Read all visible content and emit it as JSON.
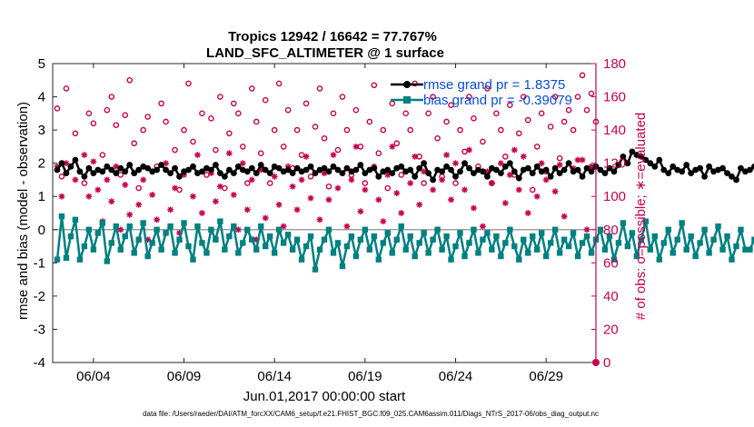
{
  "chart_data": {
    "type": "line",
    "title": "Tropics 12942 / 16642 = 77.767%",
    "subtitle": "LAND_SFC_ALTIMETER @ 1 surface",
    "xlabel": "Jun.01,2017 00:00:00 start",
    "ylabel_left": "rmse and bias (model - observation)",
    "ylabel_right": "# of obs: o=possible; ∗=evaluated",
    "footnote": "data file: /Users/raeder/DAI/ATM_forcXX/CAM6_setup/f.e21.FHIST_BGC.f09_025.CAM6assim.011/Diags_NTrS_2017-06/obs_diag_output.nc",
    "xlim": [
      0.75,
      30.75
    ],
    "ylim_left": [
      -4,
      5
    ],
    "ylim_right": [
      0,
      180
    ],
    "x_ticks": [
      3,
      8,
      13,
      18,
      23,
      28
    ],
    "x_tick_labels": [
      "06/04",
      "06/09",
      "06/14",
      "06/19",
      "06/24",
      "06/29"
    ],
    "y_ticks_left": [
      "-4",
      "-3",
      "-2",
      "-1",
      "0",
      "1",
      "2",
      "3",
      "4",
      "5"
    ],
    "y_ticks_right": [
      "0",
      "20",
      "40",
      "60",
      "80",
      "100",
      "120",
      "140",
      "160",
      "180"
    ],
    "legend_location": "top-right",
    "colors": {
      "rmse": "#000000",
      "bias": "#008080",
      "obs": "#c8004e",
      "legend_text": "#0a4cd8",
      "zero_line": "#a0a0a0"
    },
    "series": [
      {
        "name": "rmse grand pr = 1.8375",
        "axis": "left",
        "start": 1.0,
        "step": 0.25,
        "values": [
          1.8,
          2.0,
          1.7,
          1.9,
          2.1,
          1.75,
          1.6,
          1.85,
          1.7,
          1.8,
          1.75,
          1.9,
          1.8,
          1.7,
          1.85,
          1.75,
          1.95,
          1.7,
          1.8,
          1.9,
          1.85,
          1.75,
          1.8,
          1.95,
          1.8,
          1.7,
          1.85,
          1.6,
          1.75,
          1.8,
          1.9,
          1.7,
          1.75,
          1.85,
          1.8,
          1.95,
          1.7,
          1.6,
          1.8,
          1.7,
          1.9,
          1.8,
          1.75,
          1.85,
          1.7,
          1.95,
          1.8,
          1.7,
          1.9,
          1.85,
          1.75,
          1.8,
          1.7,
          1.85,
          1.75,
          1.8,
          1.9,
          1.7,
          1.8,
          1.85,
          1.75,
          1.9,
          1.8,
          1.7,
          1.85,
          1.75,
          1.8,
          1.95,
          1.7,
          1.8,
          1.85,
          1.6,
          1.75,
          1.8,
          1.7,
          1.85,
          1.9,
          1.75,
          1.8,
          1.6,
          1.85,
          2.0,
          1.7,
          1.5,
          1.8,
          1.75,
          1.9,
          1.8,
          1.6,
          1.75,
          2.0,
          1.85,
          1.7,
          1.8,
          1.75,
          1.6,
          1.85,
          1.8,
          1.7,
          1.9,
          2.0,
          1.75,
          1.55,
          1.8,
          1.85,
          1.7,
          1.9,
          1.75,
          1.8,
          1.6,
          1.85,
          1.7,
          1.8,
          2.0,
          1.75,
          1.8,
          1.6,
          1.85,
          1.75,
          1.9,
          1.8,
          1.7,
          1.85,
          1.75,
          1.95,
          2.2,
          2.0,
          2.35,
          2.25,
          2.2,
          2.1,
          2.0,
          1.9,
          2.1,
          1.8,
          1.7,
          1.9,
          1.8,
          1.75,
          1.95,
          1.7,
          1.8,
          1.85,
          1.6,
          1.9,
          1.75,
          1.8,
          1.85,
          1.7,
          1.6,
          1.5,
          1.85,
          1.75,
          1.8,
          1.9,
          1.65,
          1.6,
          1.85,
          1.7,
          1.75
        ]
      },
      {
        "name": "bias grand pr = -0.39079",
        "axis": "left",
        "start": 1.0,
        "step": 0.25,
        "values": [
          -0.9,
          0.4,
          -0.85,
          -0.2,
          0.3,
          -0.9,
          -0.5,
          0.0,
          -0.6,
          -0.1,
          0.2,
          -0.95,
          -0.4,
          0.1,
          -0.6,
          -0.2,
          0.1,
          -0.7,
          -0.3,
          0.2,
          -0.8,
          -0.4,
          0.0,
          -0.6,
          -0.1,
          0.1,
          -0.7,
          -0.3,
          0.2,
          -0.5,
          -0.9,
          0.1,
          -0.4,
          -0.7,
          0.0,
          -0.3,
          0.25,
          -0.6,
          -0.2,
          0.1,
          -0.7,
          -0.4,
          0.0,
          -0.3,
          -0.6,
          0.1,
          -0.5,
          -0.2,
          -0.7,
          0.0,
          -0.4,
          -0.15,
          -0.6,
          -0.3,
          -0.9,
          -0.5,
          -0.2,
          -1.2,
          -0.6,
          -0.3,
          0.0,
          -0.7,
          -0.4,
          -1.1,
          -0.5,
          -0.2,
          -0.8,
          -0.3,
          0.0,
          -0.6,
          -0.2,
          -0.9,
          -0.4,
          -0.1,
          -0.7,
          -0.3,
          0.1,
          -0.6,
          -0.2,
          -0.8,
          -0.4,
          -0.1,
          -0.7,
          -0.3,
          0.0,
          -0.6,
          -0.2,
          -0.9,
          -0.5,
          -0.1,
          -0.8,
          -0.4,
          0.0,
          -0.7,
          -0.3,
          -0.1,
          -0.6,
          -0.2,
          -0.8,
          -0.4,
          0.0,
          -0.5,
          -0.9,
          -0.3,
          -0.7,
          -0.2,
          -0.6,
          -0.1,
          -0.8,
          -0.4,
          0.0,
          -0.7,
          -0.3,
          -0.5,
          -0.1,
          -0.8,
          -0.4,
          -0.2,
          -0.7,
          -0.3,
          0.0,
          -0.6,
          -0.2,
          -0.9,
          -0.4,
          0.2,
          -0.5,
          -0.1,
          -0.8,
          -0.3,
          0.25,
          -0.6,
          -0.2,
          -0.9,
          -0.4,
          0.0,
          -0.7,
          -0.3,
          0.2,
          -0.6,
          -0.2,
          -0.8,
          -0.4,
          0.0,
          -0.7,
          -0.3,
          0.1,
          -0.6,
          -0.2,
          -0.9,
          -0.5,
          0.0,
          -0.6,
          -0.6,
          -0.3,
          0.0
        ]
      }
    ],
    "obs_possible": [
      [
        1.0,
        153
      ],
      [
        1.25,
        112
      ],
      [
        1.5,
        165
      ],
      [
        2.0,
        138
      ],
      [
        2.5,
        108
      ],
      [
        2.75,
        150
      ],
      [
        3.0,
        144
      ],
      [
        3.5,
        125
      ],
      [
        3.75,
        152
      ],
      [
        4.0,
        160
      ],
      [
        4.25,
        143
      ],
      [
        4.5,
        113
      ],
      [
        4.75,
        149
      ],
      [
        5.0,
        170
      ],
      [
        5.25,
        132
      ],
      [
        5.5,
        105
      ],
      [
        5.75,
        140
      ],
      [
        6.0,
        148
      ],
      [
        6.5,
        118
      ],
      [
        6.75,
        156
      ],
      [
        7.0,
        145
      ],
      [
        7.5,
        128
      ],
      [
        7.75,
        104
      ],
      [
        8.0,
        140
      ],
      [
        8.25,
        168
      ],
      [
        8.5,
        133
      ],
      [
        9.0,
        150
      ],
      [
        9.25,
        113
      ],
      [
        9.5,
        147
      ],
      [
        9.75,
        128
      ],
      [
        10.0,
        160
      ],
      [
        10.25,
        105
      ],
      [
        10.5,
        138
      ],
      [
        10.75,
        156
      ],
      [
        11.0,
        150
      ],
      [
        11.25,
        130
      ],
      [
        11.5,
        108
      ],
      [
        11.75,
        165
      ],
      [
        12.0,
        145
      ],
      [
        12.25,
        126
      ],
      [
        12.5,
        158
      ],
      [
        12.75,
        108
      ],
      [
        13.0,
        140
      ],
      [
        13.25,
        168
      ],
      [
        13.5,
        130
      ],
      [
        13.75,
        152
      ],
      [
        14.0,
        117
      ],
      [
        14.25,
        140
      ],
      [
        14.5,
        125
      ],
      [
        14.75,
        156
      ],
      [
        15.0,
        112
      ],
      [
        15.25,
        142
      ],
      [
        15.5,
        165
      ],
      [
        15.75,
        135
      ],
      [
        16.0,
        106
      ],
      [
        16.25,
        150
      ],
      [
        16.5,
        128
      ],
      [
        16.75,
        160
      ],
      [
        17.0,
        140
      ],
      [
        17.25,
        113
      ],
      [
        17.5,
        152
      ],
      [
        17.75,
        130
      ],
      [
        18.0,
        108
      ],
      [
        18.25,
        145
      ],
      [
        18.5,
        167
      ],
      [
        18.75,
        126
      ],
      [
        19.0,
        140
      ],
      [
        19.25,
        105
      ],
      [
        19.5,
        156
      ],
      [
        19.75,
        132
      ],
      [
        20.0,
        113
      ],
      [
        20.25,
        150
      ],
      [
        20.5,
        140
      ],
      [
        20.75,
        168
      ],
      [
        21.0,
        124
      ],
      [
        21.25,
        108
      ],
      [
        21.5,
        150
      ],
      [
        21.75,
        160
      ],
      [
        22.0,
        135
      ],
      [
        22.25,
        112
      ],
      [
        22.5,
        145
      ],
      [
        22.75,
        155
      ],
      [
        23.0,
        108
      ],
      [
        23.25,
        140
      ],
      [
        23.5,
        127
      ],
      [
        23.75,
        160
      ],
      [
        24.0,
        147
      ],
      [
        24.25,
        118
      ],
      [
        24.5,
        133
      ],
      [
        24.75,
        165
      ],
      [
        25.0,
        108
      ],
      [
        25.25,
        150
      ],
      [
        25.5,
        140
      ],
      [
        25.75,
        124
      ],
      [
        26.0,
        155
      ],
      [
        26.25,
        113
      ],
      [
        26.5,
        138
      ],
      [
        26.75,
        160
      ],
      [
        27.0,
        146
      ],
      [
        27.25,
        104
      ],
      [
        27.5,
        130
      ],
      [
        27.75,
        150
      ],
      [
        28.0,
        115
      ],
      [
        28.25,
        142
      ],
      [
        28.5,
        160
      ],
      [
        28.75,
        123
      ],
      [
        29.0,
        145
      ],
      [
        29.25,
        152
      ],
      [
        29.5,
        140
      ],
      [
        29.75,
        160
      ],
      [
        30.0,
        173
      ],
      [
        30.25,
        152
      ],
      [
        30.5,
        162
      ],
      [
        30.75,
        145
      ]
    ],
    "obs_evaluated": [
      [
        1.0,
        118
      ],
      [
        1.25,
        100
      ],
      [
        1.5,
        120
      ],
      [
        2.0,
        110
      ],
      [
        2.5,
        125
      ],
      [
        2.75,
        100
      ],
      [
        3.0,
        121
      ],
      [
        3.25,
        104
      ],
      [
        3.5,
        85
      ],
      [
        3.75,
        110
      ],
      [
        4.0,
        97
      ],
      [
        4.25,
        118
      ],
      [
        4.5,
        80
      ],
      [
        4.75,
        107
      ],
      [
        5.0,
        89
      ],
      [
        5.25,
        114
      ],
      [
        5.5,
        95
      ],
      [
        5.75,
        110
      ],
      [
        6.0,
        74
      ],
      [
        6.25,
        101
      ],
      [
        6.5,
        86
      ],
      [
        7.0,
        120
      ],
      [
        7.25,
        92
      ],
      [
        7.5,
        105
      ],
      [
        7.75,
        78
      ],
      [
        8.0,
        113
      ],
      [
        8.5,
        100
      ],
      [
        8.75,
        125
      ],
      [
        9.0,
        90
      ],
      [
        9.5,
        114
      ],
      [
        9.75,
        97
      ],
      [
        10.0,
        106
      ],
      [
        10.5,
        126
      ],
      [
        10.75,
        101
      ],
      [
        11.0,
        80
      ],
      [
        11.25,
        120
      ],
      [
        11.5,
        92
      ],
      [
        11.75,
        110
      ],
      [
        12.0,
        74
      ],
      [
        12.25,
        116
      ],
      [
        12.5,
        87
      ],
      [
        13.0,
        112
      ],
      [
        13.25,
        95
      ],
      [
        13.5,
        82
      ],
      [
        13.75,
        118
      ],
      [
        14.0,
        106
      ],
      [
        14.25,
        92
      ],
      [
        14.5,
        110
      ],
      [
        14.75,
        124
      ],
      [
        15.0,
        99
      ],
      [
        15.5,
        86
      ],
      [
        15.75,
        114
      ],
      [
        16.0,
        98
      ],
      [
        16.25,
        125
      ],
      [
        16.5,
        105
      ],
      [
        17.0,
        82
      ],
      [
        17.25,
        110
      ],
      [
        17.5,
        130
      ],
      [
        17.75,
        91
      ],
      [
        18.0,
        104
      ],
      [
        18.5,
        118
      ],
      [
        18.75,
        98
      ],
      [
        19.0,
        85
      ],
      [
        19.25,
        113
      ],
      [
        19.5,
        130
      ],
      [
        19.75,
        102
      ],
      [
        20.0,
        90
      ],
      [
        20.5,
        108
      ],
      [
        20.75,
        124
      ],
      [
        21.0,
        95
      ],
      [
        21.25,
        115
      ],
      [
        21.75,
        104
      ],
      [
        22.0,
        80
      ],
      [
        22.25,
        110
      ],
      [
        22.5,
        125
      ],
      [
        22.75,
        98
      ],
      [
        23.0,
        120
      ],
      [
        23.5,
        104
      ],
      [
        23.75,
        128
      ],
      [
        24.0,
        93
      ],
      [
        24.5,
        82
      ],
      [
        24.75,
        115
      ],
      [
        25.0,
        108
      ],
      [
        25.5,
        120
      ],
      [
        25.75,
        96
      ],
      [
        26.0,
        113
      ],
      [
        26.25,
        128
      ],
      [
        26.5,
        104
      ],
      [
        26.75,
        124
      ],
      [
        27.0,
        90
      ],
      [
        27.25,
        114
      ],
      [
        27.5,
        100
      ],
      [
        27.75,
        120
      ],
      [
        28.0,
        110
      ],
      [
        28.5,
        103
      ],
      [
        28.75,
        119
      ],
      [
        29.0,
        88
      ],
      [
        29.5,
        117
      ],
      [
        29.75,
        122
      ],
      [
        30.0,
        122
      ],
      [
        30.25,
        80
      ],
      [
        30.5,
        118
      ],
      [
        30.75,
        0
      ]
    ]
  }
}
